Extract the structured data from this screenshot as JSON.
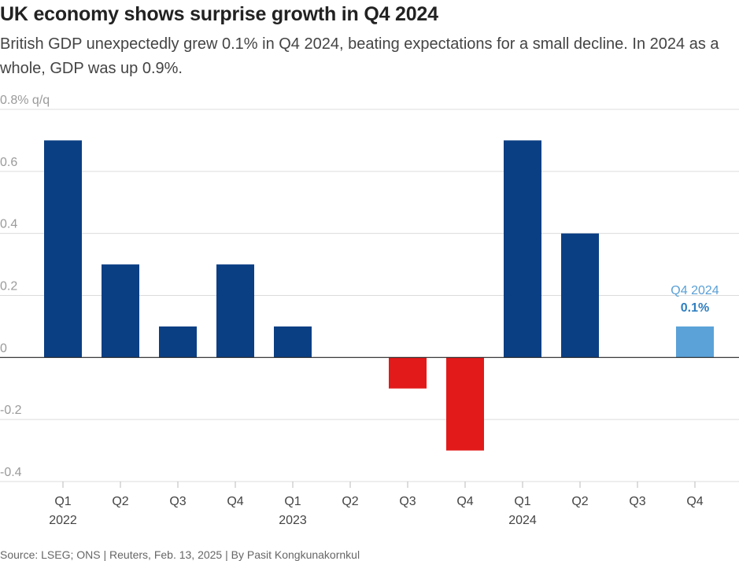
{
  "header": {
    "title": "UK economy shows surprise growth in Q4 2024",
    "subtitle": "British GDP unexpectedly grew 0.1% in Q4 2024, beating expectations for a small decline. In 2024 as a whole, GDP was up 0.9%."
  },
  "footer": {
    "source": "Source: LSEG; ONS | Reuters, Feb. 13, 2025 | By Pasit Kongkunakornkul"
  },
  "chart_data": {
    "type": "bar",
    "categories": [
      "Q1",
      "Q2",
      "Q3",
      "Q4",
      "Q1",
      "Q2",
      "Q3",
      "Q4",
      "Q1",
      "Q2",
      "Q3",
      "Q4"
    ],
    "year_labels": [
      {
        "label": "2022",
        "index": 0
      },
      {
        "label": "2023",
        "index": 4
      },
      {
        "label": "2024",
        "index": 8
      }
    ],
    "values": [
      0.7,
      0.3,
      0.1,
      0.3,
      0.1,
      null,
      -0.1,
      -0.3,
      0.7,
      0.4,
      null,
      0.1
    ],
    "y_ticks": [
      {
        "value": 0.8,
        "label": "0.8% q/q"
      },
      {
        "value": 0.6,
        "label": "0.6"
      },
      {
        "value": 0.4,
        "label": "0.4"
      },
      {
        "value": 0.2,
        "label": "0.2"
      },
      {
        "value": 0,
        "label": "0"
      },
      {
        "value": -0.2,
        "label": "-0.2"
      },
      {
        "value": -0.4,
        "label": "-0.4"
      }
    ],
    "ylim": [
      -0.4,
      0.8
    ],
    "grid": true,
    "colors": {
      "positive": "#0b3f84",
      "negative": "#e21a1a",
      "highlight": "#5aa2d8",
      "grid": "#dcdcdc",
      "baseline": "#222222"
    },
    "highlight_index": 11,
    "annotation": {
      "index": 11,
      "label": "Q4 2024",
      "value_label": "0.1%"
    }
  }
}
